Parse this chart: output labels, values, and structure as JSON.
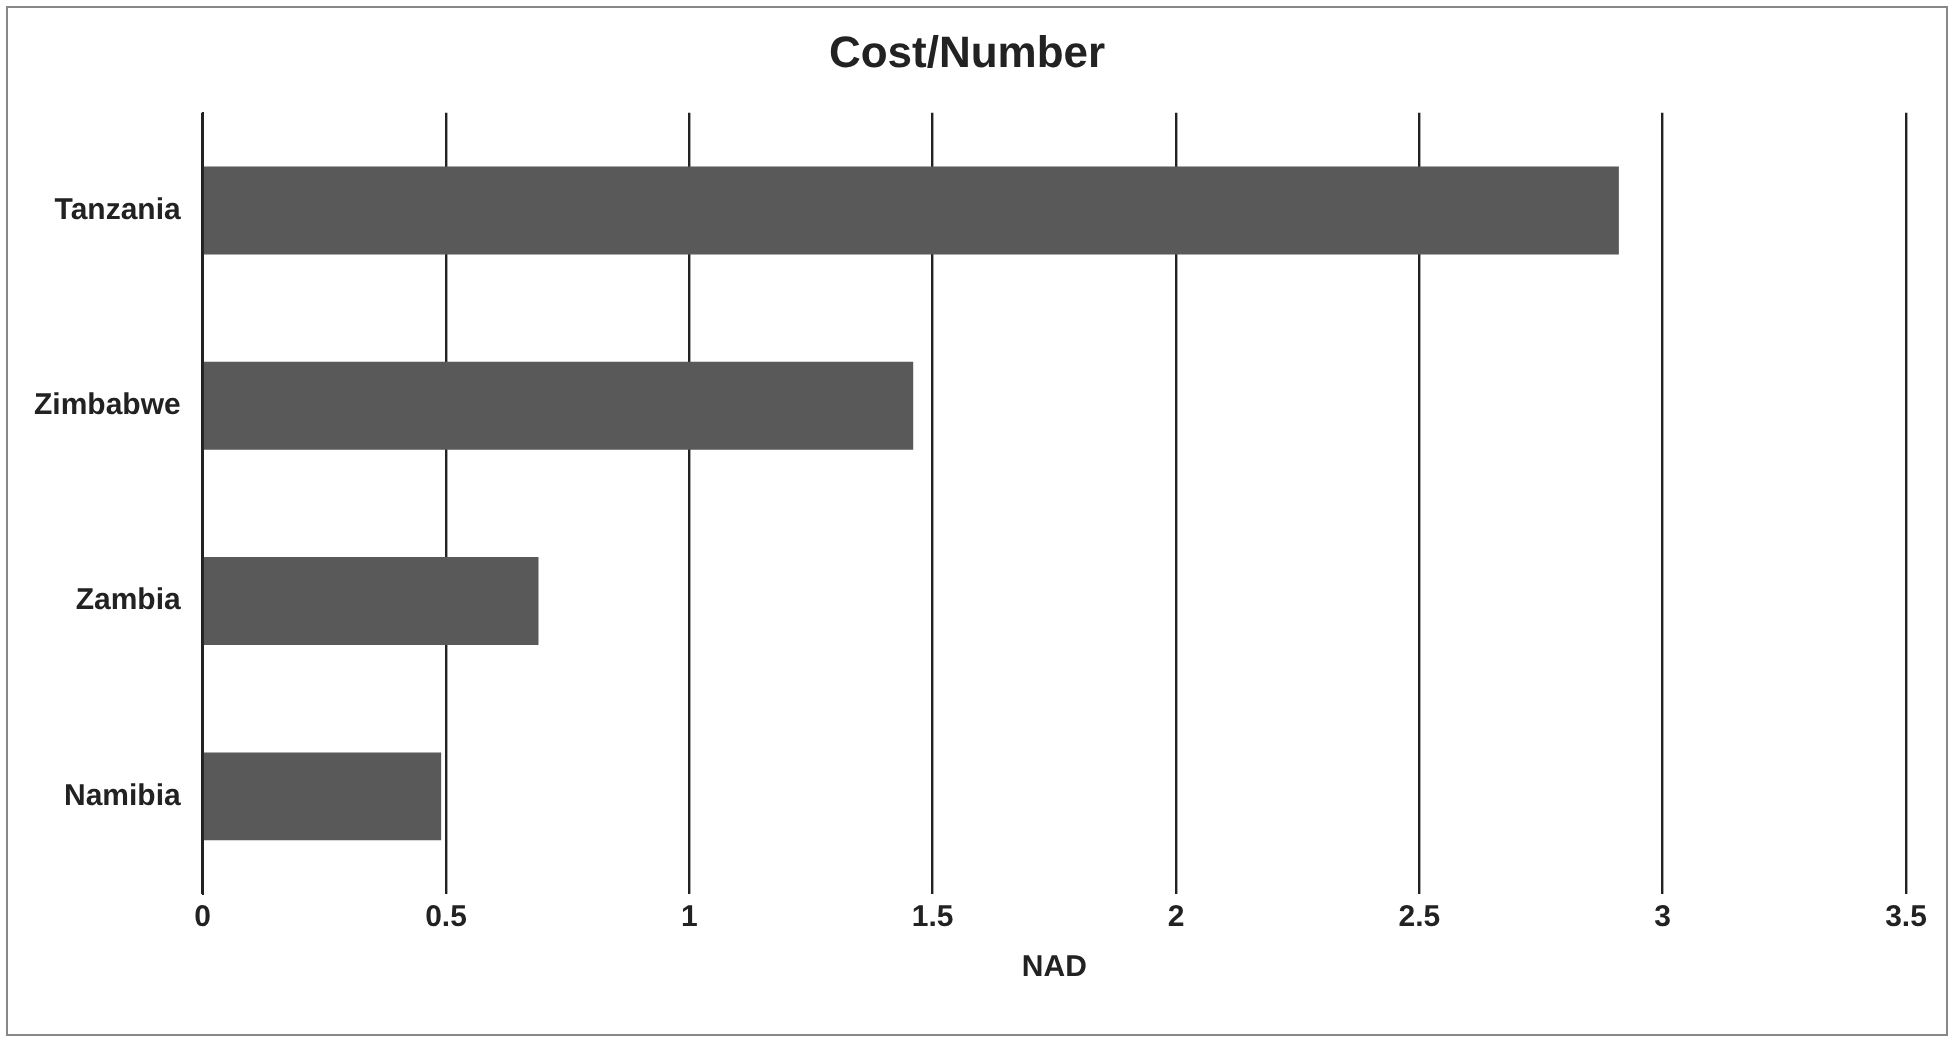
{
  "chart_data": {
    "type": "bar",
    "orientation": "horizontal",
    "title": "Cost/Number",
    "xlabel": "NAD",
    "categories": [
      "Tanzania",
      "Zimbabwe",
      "Zambia",
      "Namibia"
    ],
    "values": [
      2.91,
      1.46,
      0.69,
      0.49
    ],
    "color": "#595959",
    "xlim": [
      0,
      3.5
    ],
    "xticks": [
      0,
      0.5,
      1,
      1.5,
      2,
      2.5,
      3,
      3.5
    ],
    "grid": "x",
    "legend": false
  }
}
